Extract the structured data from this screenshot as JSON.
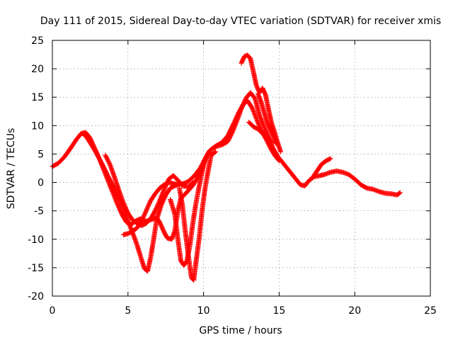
{
  "chart_data": {
    "type": "scatter",
    "title": "Day 111 of 2015, Sidereal Day-to-day VTEC variation (SDTVAR) for receiver xmis",
    "xlabel": "GPS time / hours",
    "ylabel": "SDTVAR / TECUs",
    "xlim": [
      0,
      25
    ],
    "ylim": [
      -20,
      25
    ],
    "xticks": [
      "0",
      "5",
      "10",
      "15",
      "20",
      "25"
    ],
    "yticks": [
      "25",
      "20",
      "15",
      "10",
      "5",
      "0",
      "-5",
      "-10",
      "-15",
      "-20"
    ],
    "grid": true,
    "marker": "+",
    "color": "#ff0000",
    "series": [
      {
        "points": [
          [
            0.0,
            2.8
          ],
          [
            0.4,
            3.4
          ],
          [
            0.8,
            4.5
          ],
          [
            1.2,
            6.0
          ],
          [
            1.6,
            7.6
          ],
          [
            1.9,
            8.6
          ],
          [
            2.2,
            8.8
          ],
          [
            2.5,
            7.8
          ],
          [
            2.8,
            6.0
          ],
          [
            3.1,
            4.2
          ],
          [
            3.4,
            2.2
          ],
          [
            3.7,
            0.2
          ],
          [
            4.0,
            -1.8
          ],
          [
            4.3,
            -3.8
          ],
          [
            4.6,
            -5.6
          ],
          [
            4.9,
            -7.0
          ],
          [
            5.2,
            -7.4
          ],
          [
            5.5,
            -6.8
          ],
          [
            5.8,
            -6.4
          ],
          [
            6.2,
            -6.8
          ],
          [
            6.6,
            -6.5
          ],
          [
            6.9,
            -6.2
          ],
          [
            7.1,
            -7.0
          ],
          [
            7.4,
            -8.8
          ],
          [
            7.6,
            -9.8
          ],
          [
            7.9,
            -10.0
          ],
          [
            8.1,
            -8.5
          ],
          [
            8.3,
            -5.0
          ],
          [
            8.5,
            -2.8
          ],
          [
            8.8,
            -2.0
          ],
          [
            9.0,
            -1.4
          ],
          [
            9.3,
            -0.5
          ],
          [
            9.6,
            0.8
          ],
          [
            9.9,
            2.5
          ],
          [
            10.2,
            4.5
          ],
          [
            10.5,
            5.8
          ],
          [
            10.8,
            6.3
          ],
          [
            11.2,
            6.6
          ],
          [
            11.6,
            7.2
          ],
          [
            11.9,
            8.8
          ],
          [
            12.2,
            10.8
          ],
          [
            12.5,
            13.0
          ],
          [
            12.8,
            14.8
          ],
          [
            13.1,
            15.8
          ],
          [
            13.4,
            14.8
          ],
          [
            13.7,
            11.8
          ],
          [
            14.0,
            9.8
          ],
          [
            14.3,
            8.0
          ],
          [
            14.6,
            6.0
          ],
          [
            14.9,
            4.6
          ],
          [
            15.2,
            3.6
          ],
          [
            15.5,
            2.6
          ],
          [
            15.8,
            1.6
          ],
          [
            16.1,
            0.6
          ],
          [
            16.4,
            -0.4
          ],
          [
            16.7,
            -0.6
          ],
          [
            17.0,
            0.4
          ],
          [
            17.3,
            1.0
          ],
          [
            17.7,
            1.2
          ],
          [
            18.0,
            1.4
          ],
          [
            18.4,
            1.8
          ],
          [
            18.8,
            2.0
          ],
          [
            19.2,
            1.8
          ],
          [
            19.6,
            1.4
          ],
          [
            20.0,
            0.6
          ],
          [
            20.4,
            -0.4
          ],
          [
            20.8,
            -1.0
          ],
          [
            21.2,
            -1.2
          ],
          [
            21.6,
            -1.6
          ],
          [
            22.0,
            -1.9
          ],
          [
            22.4,
            -2.0
          ],
          [
            22.8,
            -2.2
          ],
          [
            23.0,
            -1.8
          ]
        ]
      },
      {
        "points": [
          [
            2.0,
            8.6
          ],
          [
            2.2,
            8.2
          ],
          [
            2.5,
            7.0
          ],
          [
            2.9,
            5.2
          ],
          [
            3.3,
            3.2
          ],
          [
            3.7,
            1.0
          ],
          [
            4.1,
            -1.0
          ],
          [
            4.4,
            -2.8
          ],
          [
            4.7,
            -4.6
          ],
          [
            5.0,
            -6.8
          ],
          [
            5.3,
            -8.8
          ],
          [
            5.6,
            -11.0
          ],
          [
            5.9,
            -13.6
          ],
          [
            6.1,
            -15.2
          ],
          [
            6.3,
            -15.6
          ],
          [
            6.5,
            -13.2
          ],
          [
            6.7,
            -10.0
          ],
          [
            6.9,
            -6.5
          ],
          [
            7.2,
            -4.0
          ],
          [
            7.5,
            -2.2
          ],
          [
            7.8,
            -1.0
          ],
          [
            8.1,
            -0.6
          ],
          [
            8.4,
            -0.3
          ],
          [
            8.7,
            -0.2
          ],
          [
            9.0,
            0.2
          ],
          [
            9.4,
            1.2
          ],
          [
            9.8,
            2.6
          ],
          [
            10.1,
            4.2
          ],
          [
            10.4,
            5.6
          ],
          [
            10.8,
            6.4
          ],
          [
            11.2,
            7.0
          ],
          [
            11.6,
            8.2
          ],
          [
            12.0,
            10.4
          ],
          [
            12.3,
            12.2
          ],
          [
            12.6,
            13.6
          ],
          [
            12.9,
            14.4
          ],
          [
            13.2,
            13.2
          ],
          [
            13.5,
            11.2
          ],
          [
            13.8,
            9.2
          ],
          [
            14.1,
            7.8
          ],
          [
            14.4,
            6.2
          ],
          [
            14.7,
            4.8
          ],
          [
            15.0,
            3.8
          ]
        ]
      },
      {
        "points": [
          [
            3.5,
            4.8
          ],
          [
            3.8,
            3.2
          ],
          [
            4.1,
            1.0
          ],
          [
            4.4,
            -1.4
          ],
          [
            4.7,
            -3.6
          ],
          [
            5.0,
            -5.4
          ],
          [
            5.3,
            -6.6
          ],
          [
            5.6,
            -7.2
          ],
          [
            5.9,
            -7.6
          ],
          [
            6.2,
            -7.2
          ],
          [
            6.5,
            -6.4
          ],
          [
            6.8,
            -5.0
          ],
          [
            7.1,
            -3.2
          ],
          [
            7.4,
            -1.2
          ],
          [
            7.7,
            0.6
          ],
          [
            8.0,
            1.2
          ],
          [
            8.3,
            0.4
          ],
          [
            8.6,
            -0.6
          ],
          [
            9.0,
            -0.8
          ],
          [
            9.3,
            0.0
          ]
        ]
      },
      {
        "points": [
          [
            4.7,
            -9.2
          ],
          [
            5.0,
            -9.0
          ],
          [
            5.3,
            -8.6
          ],
          [
            5.6,
            -8.0
          ],
          [
            5.9,
            -6.8
          ],
          [
            6.2,
            -5.0
          ],
          [
            6.5,
            -3.2
          ],
          [
            6.8,
            -2.0
          ],
          [
            7.1,
            -1.0
          ],
          [
            7.4,
            -0.4
          ],
          [
            7.7,
            0.0
          ],
          [
            8.0,
            -0.2
          ],
          [
            8.3,
            -0.4
          ]
        ]
      },
      {
        "points": [
          [
            7.8,
            -3.0
          ],
          [
            8.1,
            -5.6
          ],
          [
            8.3,
            -10.0
          ],
          [
            8.5,
            -13.8
          ],
          [
            8.7,
            -14.6
          ],
          [
            8.9,
            -13.8
          ],
          [
            9.1,
            -11.0
          ],
          [
            9.3,
            -7.0
          ],
          [
            9.5,
            -3.6
          ],
          [
            9.7,
            -0.8
          ],
          [
            9.9,
            1.8
          ],
          [
            10.1,
            4.0
          ]
        ]
      },
      {
        "points": [
          [
            8.4,
            -1.0
          ],
          [
            8.6,
            -4.0
          ],
          [
            8.8,
            -8.8
          ],
          [
            9.0,
            -13.0
          ],
          [
            9.2,
            -16.8
          ],
          [
            9.35,
            -17.2
          ],
          [
            9.5,
            -14.0
          ],
          [
            9.7,
            -10.0
          ],
          [
            9.9,
            -5.0
          ],
          [
            10.1,
            -1.0
          ],
          [
            10.3,
            2.0
          ],
          [
            10.5,
            4.8
          ],
          [
            10.8,
            5.4
          ]
        ]
      },
      {
        "points": [
          [
            12.5,
            21.0
          ],
          [
            12.7,
            22.2
          ],
          [
            12.9,
            22.4
          ],
          [
            13.1,
            21.8
          ],
          [
            13.3,
            19.4
          ],
          [
            13.5,
            17.0
          ],
          [
            13.7,
            15.8
          ],
          [
            13.9,
            16.6
          ],
          [
            14.1,
            15.4
          ],
          [
            14.3,
            12.8
          ],
          [
            14.5,
            10.4
          ],
          [
            14.7,
            8.8
          ],
          [
            14.9,
            7.0
          ],
          [
            15.1,
            5.4
          ]
        ]
      },
      {
        "points": [
          [
            13.6,
            15.6
          ],
          [
            13.8,
            14.2
          ],
          [
            14.0,
            12.4
          ],
          [
            14.2,
            10.6
          ],
          [
            14.4,
            9.4
          ],
          [
            14.6,
            8.2
          ],
          [
            14.8,
            6.8
          ]
        ]
      },
      {
        "points": [
          [
            13.0,
            10.6
          ],
          [
            13.3,
            9.8
          ],
          [
            13.6,
            9.4
          ],
          [
            13.9,
            8.6
          ],
          [
            14.2,
            8.2
          ],
          [
            14.5,
            7.0
          ]
        ]
      },
      {
        "points": [
          [
            17.2,
            0.8
          ],
          [
            17.5,
            2.0
          ],
          [
            17.8,
            3.2
          ],
          [
            18.1,
            3.8
          ],
          [
            18.4,
            4.2
          ]
        ]
      }
    ]
  }
}
